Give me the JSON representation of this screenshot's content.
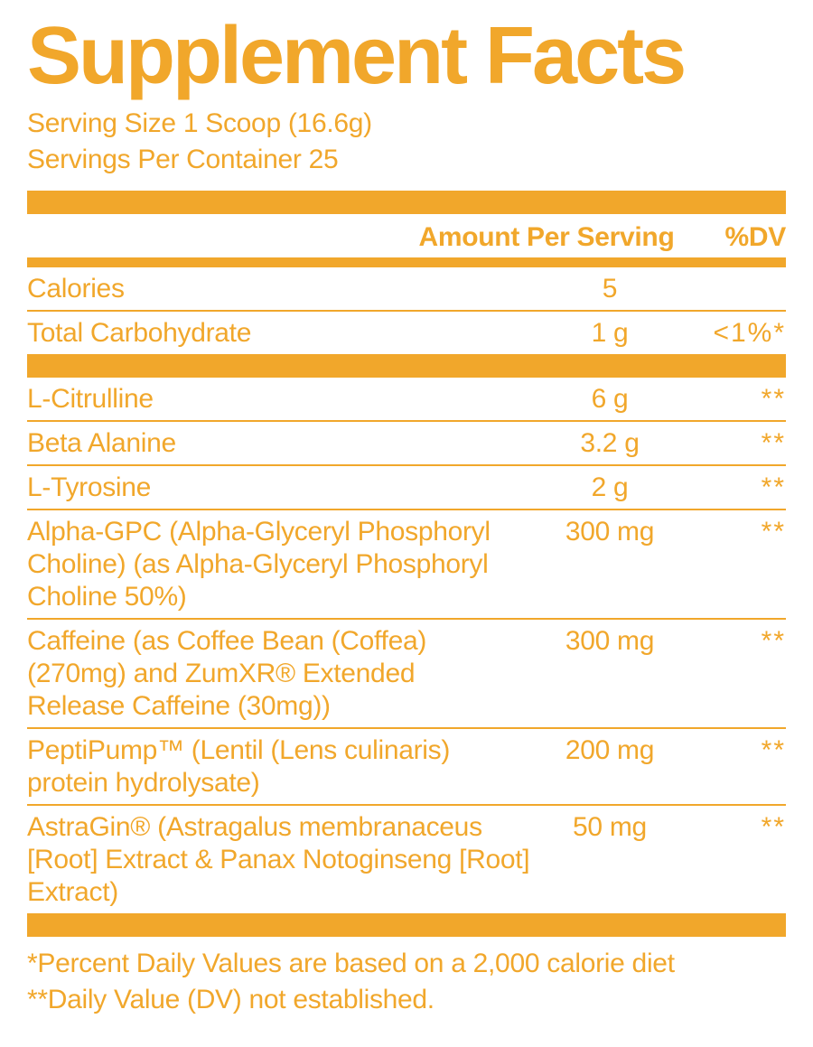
{
  "meta": {
    "accent_color": "#F1A72B",
    "background_color": "#FFFFFF"
  },
  "header": {
    "title": "Supplement Facts",
    "serving_size": "Serving Size 1 Scoop (16.6g)",
    "servings_per_container": "Servings Per Container 25"
  },
  "table": {
    "columns": {
      "amount": "Amount Per Serving",
      "dv": "%DV"
    },
    "sections": [
      {
        "rows": [
          {
            "name_lines": [
              "Calories"
            ],
            "amount": "5",
            "dv": ""
          },
          {
            "name_lines": [
              "Total Carbohydrate"
            ],
            "amount": "1 g",
            "dv": "<1%*"
          }
        ]
      },
      {
        "rows": [
          {
            "name_lines": [
              "L-Citrulline"
            ],
            "amount": "6 g",
            "dv": "**"
          },
          {
            "name_lines": [
              "Beta Alanine"
            ],
            "amount": "3.2 g",
            "dv": "**"
          },
          {
            "name_lines": [
              "L-Tyrosine"
            ],
            "amount": "2 g",
            "dv": "**"
          },
          {
            "name_lines": [
              "Alpha-GPC (Alpha-Glyceryl Phosphoryl",
              "Choline) (as Alpha-Glyceryl Phosphoryl",
              "Choline 50%)"
            ],
            "amount": "300 mg",
            "dv": "**"
          },
          {
            "name_lines": [
              "Caffeine (as Coffee Bean (Coffea)",
              "(270mg) and ZumXR® Extended",
              "Release Caffeine (30mg))"
            ],
            "amount": "300 mg",
            "dv": "**"
          },
          {
            "name_lines": [
              "PeptiPump™ (Lentil (Lens culinaris)",
              "protein hydrolysate)"
            ],
            "amount": "200 mg",
            "dv": "**"
          },
          {
            "name_lines": [
              "AstraGin® (Astragalus membranaceus",
              "[Root] Extract & Panax Notoginseng [Root]",
              "Extract)"
            ],
            "amount": "50 mg",
            "dv": "**"
          }
        ]
      }
    ],
    "footnotes": [
      "*Percent Daily Values are based on a 2,000 calorie diet",
      "**Daily Value (DV) not established."
    ]
  }
}
